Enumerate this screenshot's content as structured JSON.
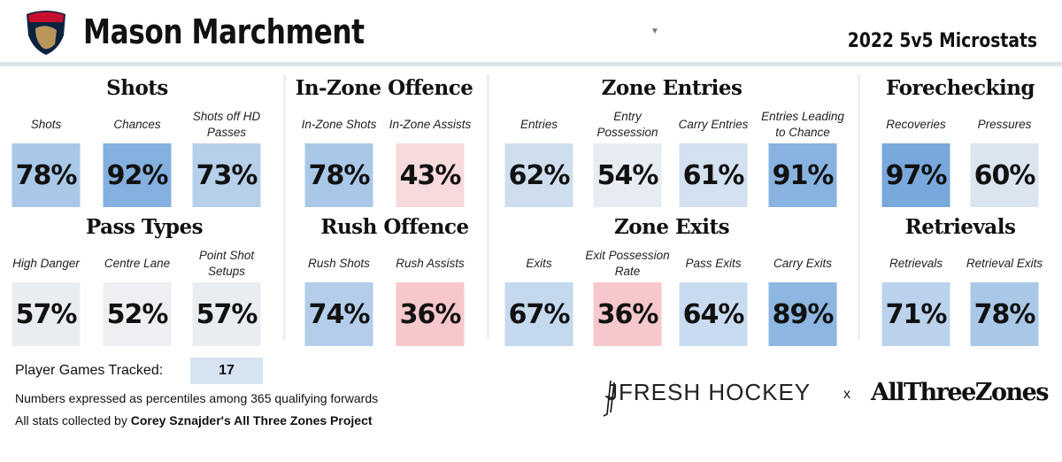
{
  "header": {
    "team_logo": "florida-panthers-logo",
    "player_name": "Mason Marchment",
    "subtitle": "2022 5v5 Microstats",
    "dropdown_icon": "caret-down-icon"
  },
  "sections": [
    {
      "title": "Shots",
      "cx": 155,
      "row": 1,
      "stats": [
        {
          "label": "Shots",
          "value": "78%",
          "color": "#a9c8e8"
        },
        {
          "label": "Chances",
          "value": "92%",
          "color": "#84b0df"
        },
        {
          "label": "Shots off HD Passes",
          "value": "73%",
          "color": "#b6d0eb"
        }
      ]
    },
    {
      "title": "In-Zone Offence",
      "row": 1,
      "stats": [
        {
          "label": "In-Zone Shots",
          "value": "78%",
          "color": "#a9c8e8"
        },
        {
          "label": "In-Zone Assists",
          "value": "43%",
          "color": "#f6dadc"
        }
      ]
    },
    {
      "title": "Zone Entries",
      "row": 1,
      "stats": [
        {
          "label": "Entries",
          "value": "62%",
          "color": "#cfdeee"
        },
        {
          "label": "Entry Possession Rate",
          "value": "54%",
          "color": "#e6ecf2"
        },
        {
          "label": "Carry Entries",
          "value": "61%",
          "color": "#d2e0ef"
        },
        {
          "label": "Entries Leading to Chance",
          "value": "91%",
          "color": "#88b3e0"
        }
      ]
    },
    {
      "title": "Forechecking",
      "row": 1,
      "stats": [
        {
          "label": "Recoveries",
          "value": "97%",
          "color": "#79a8dc"
        },
        {
          "label": "Pressures",
          "value": "60%",
          "color": "#dae5f0"
        }
      ]
    },
    {
      "title": "Pass Types",
      "row": 2,
      "stats": [
        {
          "label": "High Danger",
          "value": "57%",
          "color": "#e9edf2"
        },
        {
          "label": "Centre Lane",
          "value": "52%",
          "color": "#eeeff2"
        },
        {
          "label": "Point Shot Setups",
          "value": "57%",
          "color": "#e9edf2"
        }
      ]
    },
    {
      "title": "Rush Offence",
      "row": 2,
      "stats": [
        {
          "label": "Rush Shots",
          "value": "74%",
          "color": "#b3cdea"
        },
        {
          "label": "Rush Assists",
          "value": "36%",
          "color": "#f6c8cc"
        }
      ]
    },
    {
      "title": "Zone Exits",
      "row": 2,
      "stats": [
        {
          "label": "Exits",
          "value": "67%",
          "color": "#c4d8ee"
        },
        {
          "label": "Exit Possession Rate",
          "value": "36%",
          "color": "#f6c8cc"
        },
        {
          "label": "Pass Exits",
          "value": "64%",
          "color": "#c9dbef"
        },
        {
          "label": "Carry Exits",
          "value": "89%",
          "color": "#8db6e1"
        }
      ]
    },
    {
      "title": "Retrievals",
      "row": 2,
      "stats": [
        {
          "label": "Retrievals",
          "value": "71%",
          "color": "#bad2ec"
        },
        {
          "label": "Retrieval Exits",
          "value": "78%",
          "color": "#a9c8e8"
        }
      ]
    }
  ],
  "footer": {
    "games_label": "Player Games Tracked:",
    "games_value": "17",
    "note": "Numbers expressed as percentiles among 365 qualifying forwards",
    "credit_prefix": "All stats collected by ",
    "credit_bold": "Corey Sznajder's All Three Zones Project",
    "brand1": "JFRESH HOCKEY",
    "sep": "x",
    "brand2": "AllThreeZones"
  }
}
